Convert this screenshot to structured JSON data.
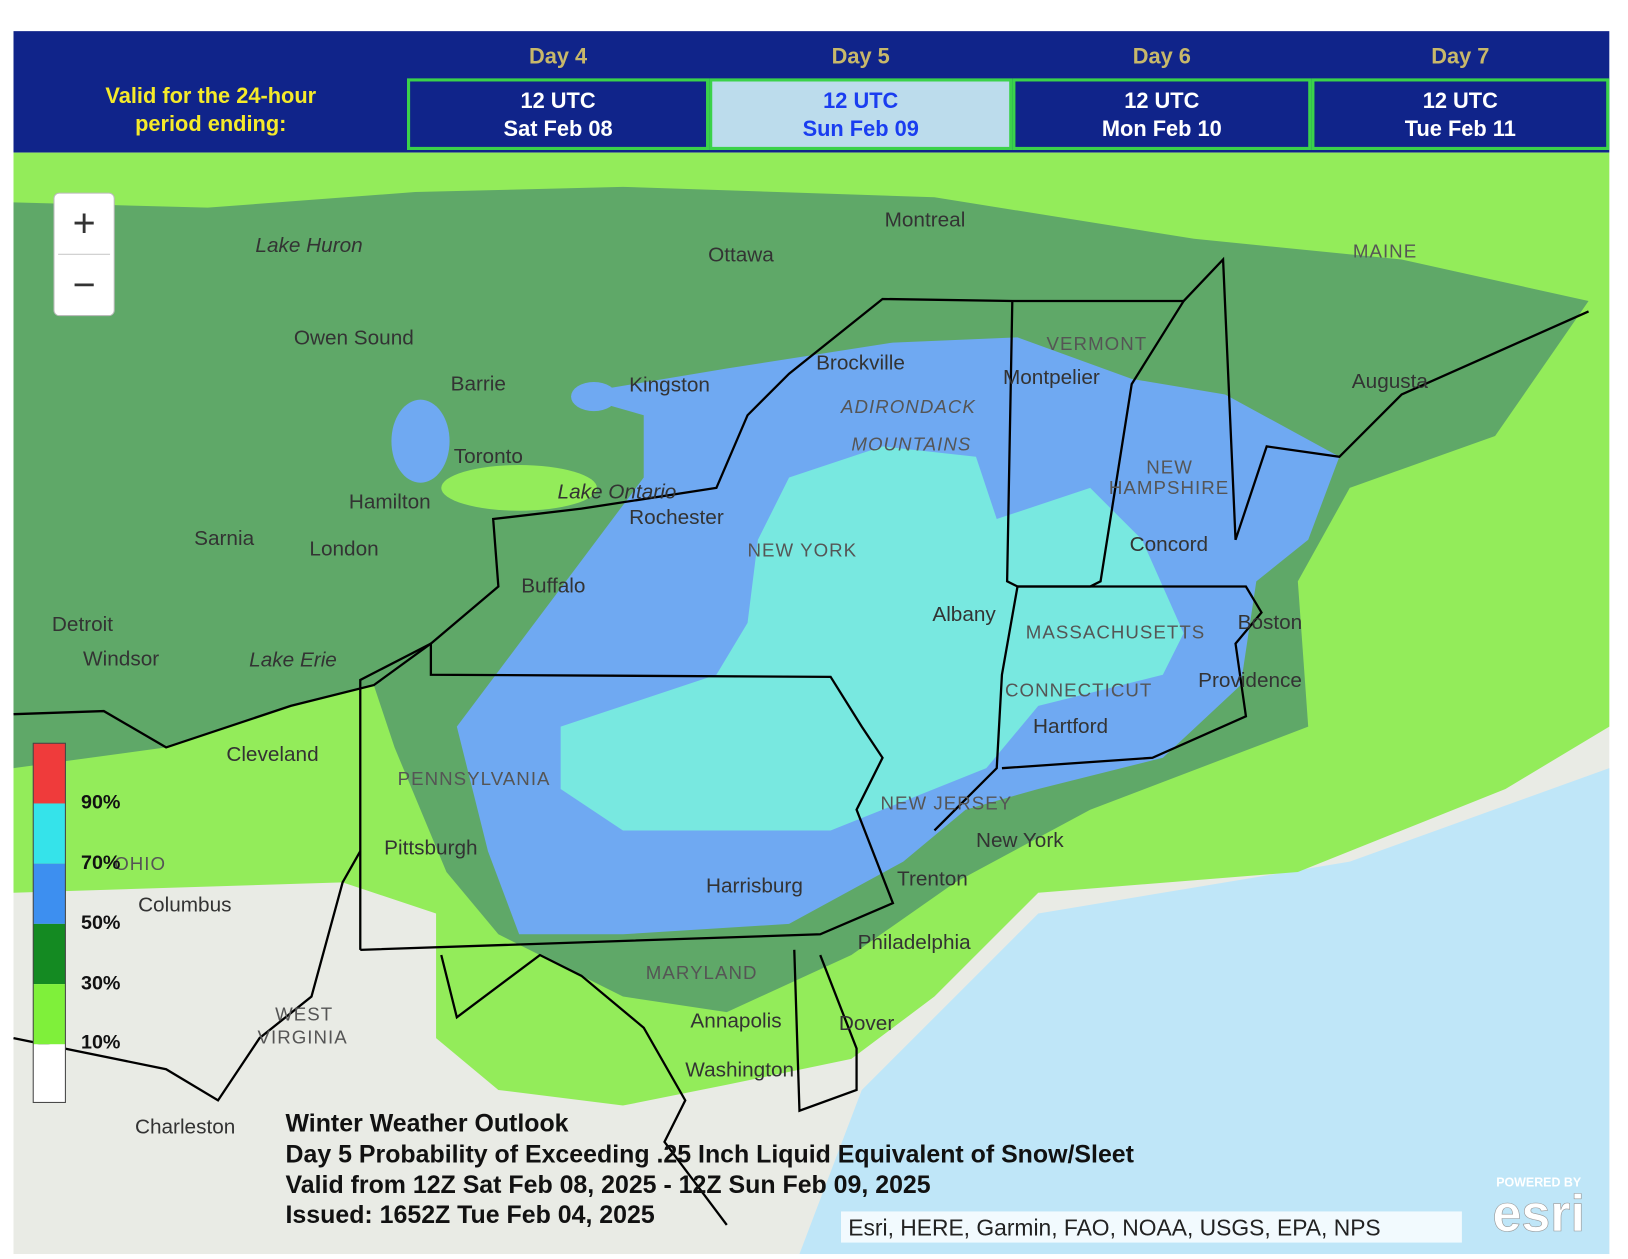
{
  "header": {
    "valid_lines": [
      "Valid for the 24-hour",
      "period ending:"
    ],
    "days": [
      {
        "day": "Day 4",
        "time": "12 UTC",
        "date": "Sat Feb 08"
      },
      {
        "day": "Day 5",
        "time": "12 UTC",
        "date": "Sun Feb 09"
      },
      {
        "day": "Day 6",
        "time": "12 UTC",
        "date": "Mon Feb 10"
      },
      {
        "day": "Day 7",
        "time": "12 UTC",
        "date": "Tue Feb 11"
      }
    ]
  },
  "map": {
    "zoom_in": "+",
    "zoom_out": "−",
    "places": [
      "Montreal",
      "Ottawa",
      "Lake Huron",
      "Owen Sound",
      "Barrie",
      "Kingston",
      "Brockville",
      "ADIRONDACK",
      "MOUNTAINS",
      "VERMONT",
      "Montpelier",
      "MAINE",
      "Augusta",
      "Toronto",
      "Hamilton",
      "Lake Ontario",
      "Rochester",
      "NEW YORK",
      "NEW",
      "HAMPSHIRE",
      "Concord",
      "Sarnia",
      "London",
      "Buffalo",
      "Albany",
      "MASSACHUSETTS",
      "Boston",
      "Detroit",
      "Windsor",
      "Lake Erie",
      "CONNECTICUT",
      "Hartford",
      "Providence",
      "Cleveland",
      "PENNSYLVANIA",
      "NEW JERSEY",
      "New York",
      "Pittsburgh",
      "OHIO",
      "Columbus",
      "Harrisburg",
      "Trenton",
      "Philadelphia",
      "MARYLAND",
      "Annapolis",
      "Dover",
      "WEST",
      "VIRGINIA",
      "Washington",
      "Charleston"
    ],
    "legend": [
      "90%",
      "70%",
      "50%",
      "30%",
      "10%"
    ],
    "title_lines": [
      "Winter Weather Outlook",
      "Day 5 Probability of Exceeding .25 Inch Liquid Equivalent of Snow/Sleet",
      "Valid from 12Z Sat Feb 08, 2025 - 12Z Sun Feb 09, 2025",
      "Issued: 1652Z Tue Feb 04, 2025"
    ],
    "attribution": "Esri, HERE, Garmin, FAO, NOAA, USGS, EPA, NPS",
    "logo": {
      "powered_by": "POWERED BY",
      "brand": "esri"
    }
  }
}
